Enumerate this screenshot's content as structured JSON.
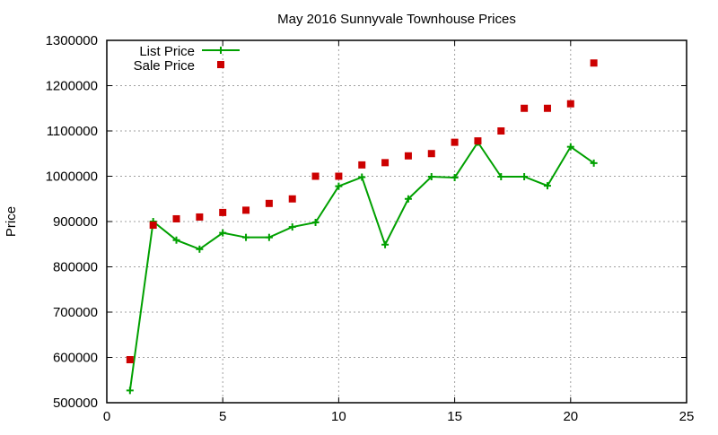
{
  "chart_data": {
    "type": "line",
    "title": "May 2016 Sunnyvale Townhouse Prices",
    "xlabel": "",
    "ylabel": "Price",
    "xlim": [
      0,
      25
    ],
    "ylim": [
      500000,
      1300000
    ],
    "xticks": [
      0,
      5,
      10,
      15,
      20,
      25
    ],
    "yticks": [
      500000,
      600000,
      700000,
      800000,
      900000,
      1000000,
      1100000,
      1200000,
      1300000
    ],
    "grid": true,
    "legend_position": "top-left",
    "x": [
      1,
      2,
      3,
      4,
      5,
      6,
      7,
      8,
      9,
      10,
      11,
      12,
      13,
      14,
      15,
      16,
      17,
      18,
      19,
      20,
      21
    ],
    "series": [
      {
        "name": "List Price",
        "style": "linespoints",
        "marker": "plus",
        "color": "#00a000",
        "values": [
          527000,
          900000,
          859000,
          839000,
          875000,
          865000,
          865000,
          888000,
          898000,
          978000,
          998000,
          849000,
          950000,
          999000,
          997000,
          1075000,
          999000,
          999000,
          979000,
          1065000,
          1029000
        ]
      },
      {
        "name": "Sale Price",
        "style": "points",
        "marker": "square",
        "color": "#cc0000",
        "values": [
          595000,
          892000,
          906000,
          910000,
          920000,
          925000,
          940000,
          950000,
          1000000,
          1000000,
          1025000,
          1030000,
          1045000,
          1050000,
          1075000,
          1078000,
          1100000,
          1150000,
          1150000,
          1160000,
          1250000
        ]
      }
    ]
  }
}
